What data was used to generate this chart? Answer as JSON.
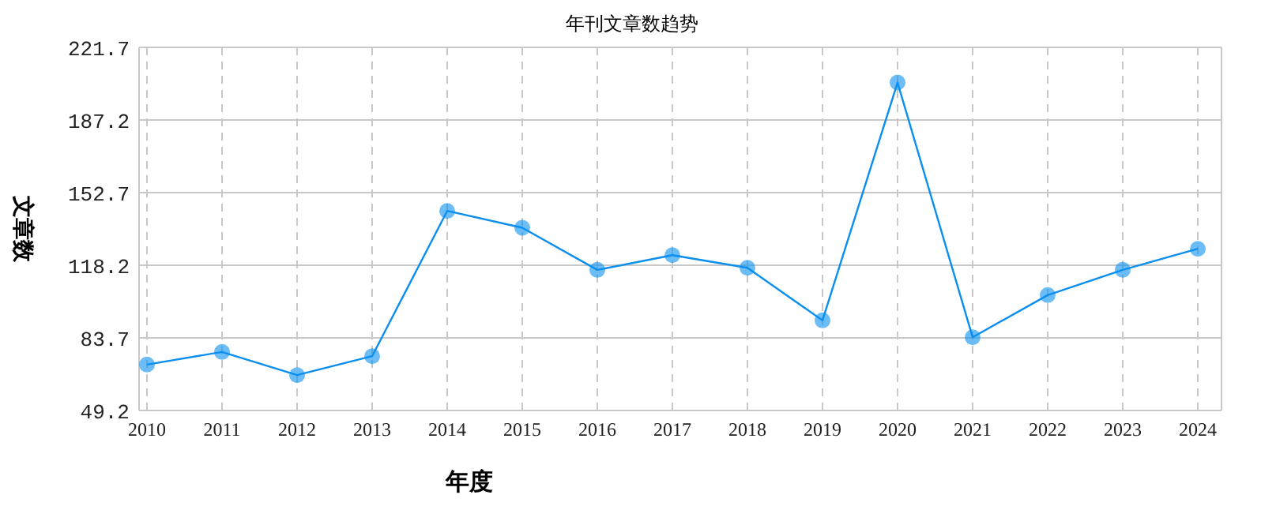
{
  "chart_data": {
    "type": "line",
    "title": "年刊文章数趋势",
    "xlabel": "年度",
    "ylabel": "文章数",
    "categories": [
      "2010",
      "2011",
      "2012",
      "2013",
      "2014",
      "2015",
      "2016",
      "2017",
      "2018",
      "2019",
      "2020",
      "2021",
      "2022",
      "2023",
      "2024"
    ],
    "series": [
      {
        "color": "#0a8ff0",
        "values": [
          71,
          77,
          66,
          75,
          144,
          136,
          116,
          123,
          117,
          92,
          205,
          84,
          104,
          116,
          126
        ]
      }
    ],
    "ylim": [
      49.2,
      221.7
    ],
    "yticks": [
      49.2,
      83.7,
      118.2,
      152.7,
      187.2,
      221.7
    ],
    "grid": true,
    "marker": "circle",
    "line_style": "solid"
  }
}
